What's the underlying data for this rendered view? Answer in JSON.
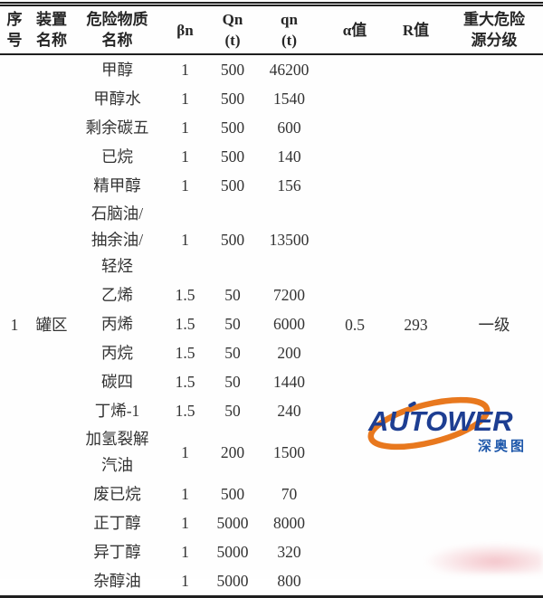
{
  "table": {
    "headers": [
      "序\n号",
      "装置\n名称",
      "危险物质\n名称",
      "βn",
      "Qn\n(t)",
      "qn\n(t)",
      "α值",
      "R值",
      "重大危险\n源分级"
    ],
    "merged": {
      "seq": "1",
      "device": "罐区",
      "alpha": "0.5",
      "r": "293",
      "grade": "一级"
    },
    "rows": [
      {
        "name": "甲醇",
        "beta": "1",
        "Qn": "500",
        "qn": "46200"
      },
      {
        "name": "甲醇水",
        "beta": "1",
        "Qn": "500",
        "qn": "1540"
      },
      {
        "name": "剩余碳五",
        "beta": "1",
        "Qn": "500",
        "qn": "600"
      },
      {
        "name": "已烷",
        "beta": "1",
        "Qn": "500",
        "qn": "140"
      },
      {
        "name": "精甲醇",
        "beta": "1",
        "Qn": "500",
        "qn": "156"
      },
      {
        "name": "石脑油/\n抽余油/\n轻烃",
        "beta": "1",
        "Qn": "500",
        "qn": "13500"
      },
      {
        "name": "乙烯",
        "beta": "1.5",
        "Qn": "50",
        "qn": "7200"
      },
      {
        "name": "丙烯",
        "beta": "1.5",
        "Qn": "50",
        "qn": "6000"
      },
      {
        "name": "丙烷",
        "beta": "1.5",
        "Qn": "50",
        "qn": "200"
      },
      {
        "name": "碳四",
        "beta": "1.5",
        "Qn": "50",
        "qn": "1440"
      },
      {
        "name": "丁烯-1",
        "beta": "1.5",
        "Qn": "50",
        "qn": "240"
      },
      {
        "name": "加氢裂解\n汽油",
        "beta": "1",
        "Qn": "200",
        "qn": "1500"
      },
      {
        "name": "废已烷",
        "beta": "1",
        "Qn": "500",
        "qn": "70"
      },
      {
        "name": "正丁醇",
        "beta": "1",
        "Qn": "5000",
        "qn": "8000"
      },
      {
        "name": "异丁醇",
        "beta": "1",
        "Qn": "5000",
        "qn": "320"
      },
      {
        "name": "杂醇油",
        "beta": "1",
        "Qn": "5000",
        "qn": "800"
      }
    ]
  },
  "logo": {
    "brand": "AUTOWER",
    "sub": "深奥图",
    "brand_color": "#1d3e92",
    "sub_color": "#1d57aa",
    "swoosh_color": "#e8781e"
  }
}
